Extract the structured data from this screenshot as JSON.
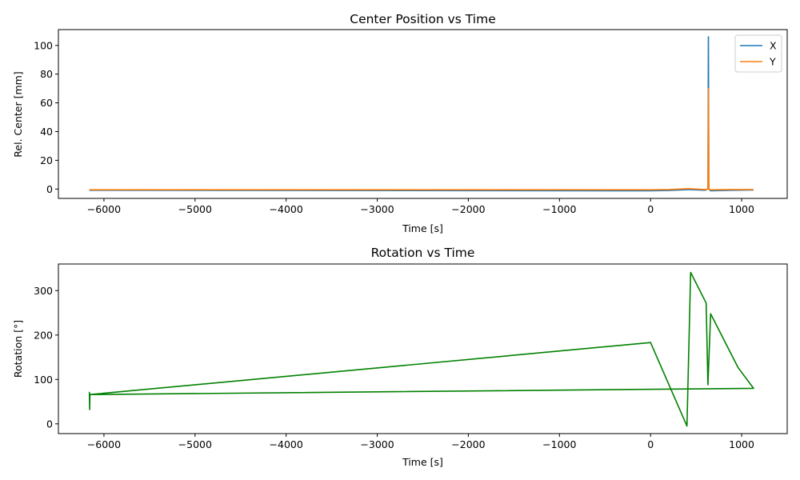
{
  "chart_data": [
    {
      "type": "line",
      "title": "Center Position vs Time",
      "xlabel": "Time [s]",
      "ylabel": "Rel. Center [mm]",
      "xlim": [
        -6500,
        1500
      ],
      "ylim": [
        -6.5,
        111
      ],
      "xticks": [
        -6000,
        -5000,
        -4000,
        -3000,
        -2000,
        -1000,
        0,
        1000
      ],
      "xtick_labels": [
        "−6000",
        "−5000",
        "−4000",
        "−3000",
        "−2000",
        "−1000",
        "0",
        "1000"
      ],
      "yticks": [
        0,
        20,
        40,
        60,
        80,
        100
      ],
      "ytick_labels": [
        "0",
        "20",
        "40",
        "60",
        "80",
        "100"
      ],
      "legend": "top-right",
      "series": [
        {
          "name": "X",
          "color": "#1f77b4",
          "points": [
            [
              -6160,
              -1.0
            ],
            [
              -6155,
              -0.8
            ],
            [
              0,
              -1.2
            ],
            [
              200,
              -1.0
            ],
            [
              420,
              -0.3
            ],
            [
              600,
              -0.8
            ],
            [
              630,
              0
            ],
            [
              635,
              106
            ],
            [
              640,
              0
            ],
            [
              660,
              -1.2
            ],
            [
              900,
              -0.8
            ],
            [
              1130,
              -0.6
            ]
          ]
        },
        {
          "name": "Y",
          "color": "#ff7f0e",
          "points": [
            [
              -6160,
              -0.3
            ],
            [
              -6155,
              -0.5
            ],
            [
              0,
              -0.5
            ],
            [
              200,
              -0.3
            ],
            [
              420,
              0.3
            ],
            [
              600,
              -0.3
            ],
            [
              630,
              0
            ],
            [
              635,
              70
            ],
            [
              640,
              0
            ],
            [
              660,
              -0.5
            ],
            [
              900,
              -0.3
            ],
            [
              1130,
              -0.3
            ]
          ]
        }
      ]
    },
    {
      "type": "line",
      "title": "Rotation vs Time",
      "xlabel": "Time [s]",
      "ylabel": "Rotation [°]",
      "xlim": [
        -6500,
        1500
      ],
      "ylim": [
        -22,
        360
      ],
      "xticks": [
        -6000,
        -5000,
        -4000,
        -3000,
        -2000,
        -1000,
        0,
        1000
      ],
      "xtick_labels": [
        "−6000",
        "−5000",
        "−4000",
        "−3000",
        "−2000",
        "−1000",
        "0",
        "1000"
      ],
      "yticks": [
        0,
        100,
        200,
        300
      ],
      "ytick_labels": [
        "0",
        "100",
        "200",
        "300"
      ],
      "series": [
        {
          "color": "#008000",
          "points": [
            [
              -6160,
              72
            ],
            [
              -6157,
              32
            ],
            [
              -6154,
              66
            ],
            [
              0,
              183
            ],
            [
              400,
              -5
            ],
            [
              440,
              341
            ],
            [
              610,
              272
            ],
            [
              630,
              88
            ],
            [
              660,
              248
            ],
            [
              960,
              127
            ],
            [
              1130,
              80
            ],
            [
              -6154,
              66
            ]
          ]
        }
      ]
    }
  ]
}
